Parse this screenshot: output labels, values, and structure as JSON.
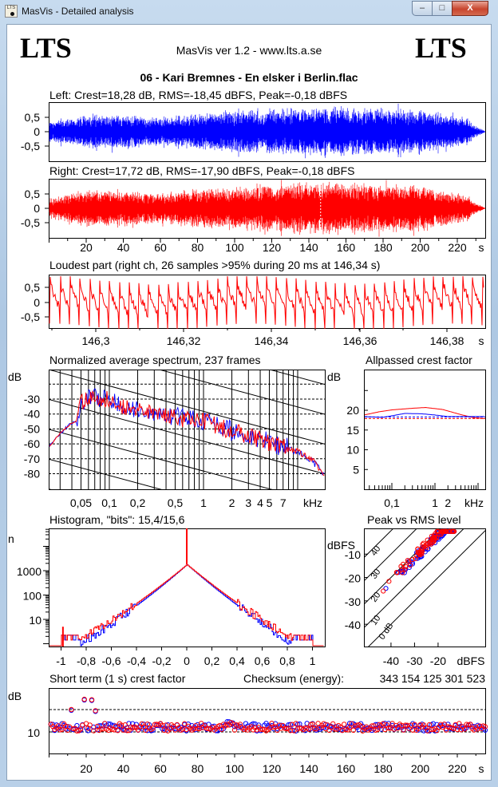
{
  "window": {
    "title": "MasVis - Detailed analysis",
    "icon": "lts-app-icon",
    "buttons": {
      "minimize": "minimize-icon",
      "maximize": "maximize-icon",
      "close": "close-icon"
    }
  },
  "header": {
    "logo_left": "LTS",
    "logo_right": "LTS",
    "version": "MasVis ver 1.2 - www.lts.a.se",
    "track": "06 - Kari Bremnes - En elsker i Berlin.flac"
  },
  "colors": {
    "left": "#0000ff",
    "right": "#ff0000",
    "axis": "#000000",
    "background": "#ffffff"
  },
  "time_axis": {
    "ticks": [
      "20",
      "40",
      "60",
      "80",
      "100",
      "120",
      "140",
      "160",
      "180",
      "200",
      "220"
    ],
    "unit": "s"
  },
  "chart_data": [
    {
      "id": "left",
      "type": "line",
      "title": "Left: Crest=18,28 dB, RMS=-18,45 dBFS, Peak=-0,18 dBFS",
      "crest_db": 18.28,
      "rms_dbfs": -18.45,
      "peak_dbfs": -0.18,
      "yticks": [
        "0,5",
        "0",
        "-0,5"
      ],
      "ylim": [
        -1,
        1
      ],
      "xlim": [
        0,
        235
      ],
      "color": "#0000ff",
      "envelope": [
        [
          0,
          0.35
        ],
        [
          10,
          0.45
        ],
        [
          20,
          0.6
        ],
        [
          40,
          0.6
        ],
        [
          60,
          0.5
        ],
        [
          80,
          0.65
        ],
        [
          100,
          0.75
        ],
        [
          120,
          0.8
        ],
        [
          140,
          0.85
        ],
        [
          150,
          0.9
        ],
        [
          170,
          0.85
        ],
        [
          200,
          0.8
        ],
        [
          215,
          0.6
        ],
        [
          225,
          0.5
        ],
        [
          230,
          0.2
        ],
        [
          235,
          0.02
        ]
      ]
    },
    {
      "id": "right",
      "type": "line",
      "title": "Right: Crest=17,72 dB, RMS=-17,90 dBFS, Peak=-0,18 dBFS",
      "crest_db": 17.72,
      "rms_dbfs": -17.9,
      "peak_dbfs": -0.18,
      "yticks": [
        "0,5",
        "0",
        "-0,5"
      ],
      "ylim": [
        -1,
        1
      ],
      "xlim": [
        0,
        235
      ],
      "color": "#ff0000",
      "envelope": [
        [
          0,
          0.35
        ],
        [
          10,
          0.5
        ],
        [
          20,
          0.65
        ],
        [
          40,
          0.65
        ],
        [
          60,
          0.55
        ],
        [
          80,
          0.7
        ],
        [
          100,
          0.8
        ],
        [
          120,
          0.85
        ],
        [
          140,
          0.95
        ],
        [
          150,
          1.0
        ],
        [
          170,
          0.9
        ],
        [
          200,
          0.85
        ],
        [
          215,
          0.65
        ],
        [
          225,
          0.5
        ],
        [
          230,
          0.2
        ],
        [
          235,
          0.02
        ]
      ],
      "marker_s": 146.34
    },
    {
      "id": "loudest",
      "type": "line",
      "title": "Loudest part (right ch, 26 samples >95% during 20 ms at 146,34 s)",
      "yticks": [
        "0,5",
        "0",
        "-0,5"
      ],
      "ylim": [
        -1,
        1
      ],
      "xticks": [
        "146,3",
        "146,32",
        "146,34",
        "146,36",
        "146,38"
      ],
      "xunit": "s",
      "xlim": [
        146.288,
        146.392
      ],
      "color": "#ff0000"
    },
    {
      "id": "spectrum",
      "type": "line",
      "title": "Normalized average spectrum, 237 frames",
      "ylabel": "dB",
      "yticks": [
        "-30",
        "-40",
        "-50",
        "-60",
        "-70",
        "-80"
      ],
      "ylim": [
        -90,
        -10
      ],
      "xticks": [
        "0,05",
        "0,1",
        "0,2",
        "0,5",
        "1",
        "2",
        "3",
        "4",
        "5",
        "7"
      ],
      "xunit": "kHz",
      "xscale": "log",
      "xlim_khz": [
        0.0227,
        19
      ],
      "grid": true,
      "trend": [
        [
          0.0227,
          -62
        ],
        [
          0.03,
          -53
        ],
        [
          0.04,
          -46
        ],
        [
          0.045,
          -45
        ],
        [
          0.05,
          -32
        ],
        [
          0.07,
          -28
        ],
        [
          0.1,
          -31
        ],
        [
          0.2,
          -38
        ],
        [
          0.5,
          -42
        ],
        [
          1,
          -45
        ],
        [
          2,
          -51
        ],
        [
          3,
          -55
        ],
        [
          4,
          -57
        ],
        [
          7,
          -62
        ],
        [
          10,
          -65
        ],
        [
          15,
          -72
        ],
        [
          19,
          -81
        ]
      ]
    },
    {
      "id": "allpass",
      "type": "line",
      "title": "Allpassed crest factor",
      "ylabel": "dB",
      "yticks": [
        "20",
        "15",
        "10",
        "5"
      ],
      "ylim": [
        0,
        30
      ],
      "xticks": [
        "0,1",
        "1",
        "2"
      ],
      "xunit": "kHz",
      "xscale": "log",
      "xlim_khz": [
        0.0226,
        14.6
      ],
      "series": [
        {
          "color": "#ff0000",
          "points": [
            [
              0.0226,
              18.8
            ],
            [
              0.05,
              19.6
            ],
            [
              0.1,
              20.1
            ],
            [
              0.3,
              20.5
            ],
            [
              0.6,
              20.7
            ],
            [
              1.5,
              20.2
            ],
            [
              4,
              18.9
            ],
            [
              8,
              18.1
            ],
            [
              14.6,
              17.9
            ]
          ],
          "reference": 17.9
        },
        {
          "color": "#0000ff",
          "points": [
            [
              0.0226,
              18.4
            ],
            [
              0.06,
              18.2
            ],
            [
              0.1,
              18.6
            ],
            [
              0.2,
              19.2
            ],
            [
              0.5,
              19.1
            ],
            [
              1,
              18.8
            ],
            [
              2,
              18.4
            ],
            [
              14.6,
              18.4
            ]
          ],
          "reference": 18.3
        }
      ]
    },
    {
      "id": "histogram",
      "type": "line",
      "title": "Histogram, \"bits\": 15,4/15,6",
      "ylabel": "n",
      "yticks": [
        "1000",
        "100",
        "10"
      ],
      "yscale": "log",
      "xticks": [
        "-1",
        "-0,8",
        "-0,6",
        "-0,4",
        "-0,2",
        "0",
        "0,2",
        "0,4",
        "0,6",
        "0,8",
        "1"
      ],
      "xlim": [
        -1.1,
        1.1
      ],
      "bits_left": 15.4,
      "bits_right": 15.6
    },
    {
      "id": "peak-rms",
      "type": "scatter",
      "title": "Peak vs RMS level",
      "ylabel": "dBFS",
      "yticks": [
        "-10",
        "-20",
        "-30",
        "-40"
      ],
      "xticks": [
        "-40",
        "-30",
        "-20"
      ],
      "xunit": "dBFS",
      "xlim": [
        -51.5,
        0
      ],
      "ylim": [
        -50,
        0
      ],
      "crest_lines": [
        "40",
        "30",
        "20",
        "10",
        "0 dB"
      ]
    },
    {
      "id": "short-term-crest",
      "type": "scatter",
      "title": "Short term (1 s) crest factor",
      "ylabel": "dB",
      "yticks": [
        "10"
      ],
      "ylim": [
        0,
        30
      ],
      "xlim": [
        0,
        235
      ],
      "reference_lines_db": [
        10,
        20
      ],
      "outliers": [
        [
          12,
          20
        ],
        [
          19,
          24.6
        ],
        [
          23,
          24.4
        ],
        [
          25,
          19.5
        ]
      ]
    }
  ],
  "checksum": {
    "label": "Checksum (energy):",
    "value": "343 154 125 301 523"
  }
}
